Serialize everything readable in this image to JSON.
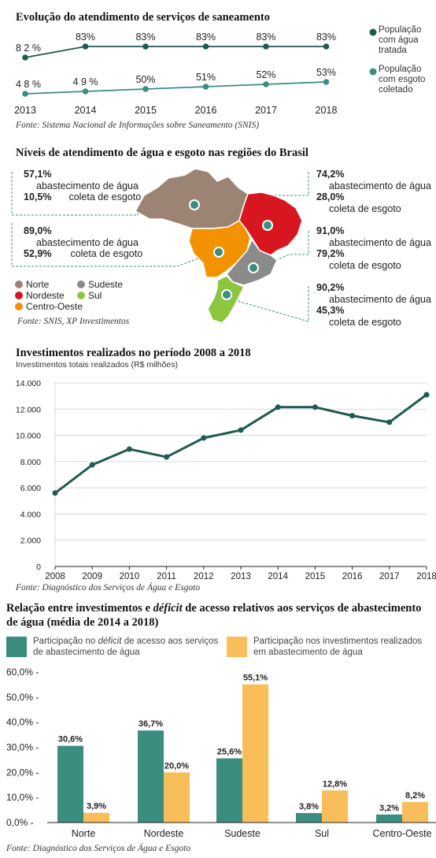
{
  "colors": {
    "dark_teal": "#1f5a4e",
    "teal": "#3b8d80",
    "orange": "#f7be5a",
    "norte": "#9c8474",
    "nordeste": "#d7161f",
    "sudeste": "#8a8a8a",
    "sul": "#8cc63f",
    "centro_oeste": "#f39200"
  },
  "section1": {
    "title": "Evolução do atendimento de serviços de saneamento",
    "source": "Fonte: Sistema Nacional de Informações sobre Saneamento (SNIS)",
    "legend": [
      {
        "label_line1": "População",
        "label_line2": "com água",
        "label_line3": "tratada"
      },
      {
        "label_line1": "População",
        "label_line2": "com esgoto",
        "label_line3": "coletado"
      }
    ]
  },
  "section2": {
    "title": "Níveis de atendimento de água e esgoto nas regiões do Brasil",
    "source": "Fonte: SNIS, XP Investimentos",
    "regions": [
      {
        "key": "norte",
        "water": "57,1%",
        "water_label": "abastecimento de água",
        "sewage": "10,5%",
        "sewage_label": "coleta de esgoto"
      },
      {
        "key": "centro_oeste",
        "water": "89,0%",
        "water_label": "abastecimento de água",
        "sewage": "52,9%",
        "sewage_label": "coleta de esgoto"
      },
      {
        "key": "nordeste",
        "water": "74,2%",
        "water_label": "abastecimento de água",
        "sewage": "28,0%",
        "sewage_label": "coleta de esgoto"
      },
      {
        "key": "sudeste",
        "water": "91,0%",
        "water_label": "abastecimento de água",
        "sewage": "79,2%",
        "sewage_label": "coleta de esgoto"
      },
      {
        "key": "sul",
        "water": "90,2%",
        "water_label": "abastecimento de água",
        "sewage": "45,3%",
        "sewage_label": "coleta de esgoto"
      }
    ],
    "legend": {
      "norte": "Norte",
      "sudeste": "Sudeste",
      "nordeste": "Nordeste",
      "sul": "Sul",
      "centro_oeste": "Centro-Oeste"
    }
  },
  "section3": {
    "title": "Investimentos realizados no período 2008 a 2018",
    "subtitle": "Investimentos totais realizados (R$ milhões)",
    "source": "Fonte: Diagnóstico dos Serviços de Água e Esgoto"
  },
  "section4": {
    "title_part1": "Relação entre investimentos e ",
    "title_italic": "déficit",
    "title_part2": " de acesso relativos aos serviços de abastecimento",
    "title_line2": "de água (média de 2014 a 2018)",
    "legend1_part1": "Participação no ",
    "legend1_italic": "déficit",
    "legend1_part2": " de acesso aos serviços",
    "legend1_line2": "de abastecimento de água",
    "legend2_line1": "Participação nos investimentos realizados",
    "legend2_line2": "em abastecimento de água",
    "source": "Fonte: Diagnóstico dos Serviços de Água e Esgoto"
  },
  "chart_data": [
    {
      "type": "line",
      "title": "Evolução do atendimento de serviços de saneamento",
      "x": [
        2013,
        2014,
        2015,
        2016,
        2017,
        2018
      ],
      "series": [
        {
          "name": "População com água tratada",
          "values": [
            82,
            83,
            83,
            83,
            83,
            83
          ],
          "labels": [
            "8 2 %",
            "83%",
            "83%",
            "83%",
            "83%",
            "83%"
          ]
        },
        {
          "name": "População com esgoto coletado",
          "values": [
            48,
            49,
            50,
            51,
            52,
            53
          ],
          "labels": [
            "4 8 %",
            "4 9 %",
            "50%",
            "51%",
            "52%",
            "53%"
          ]
        }
      ]
    },
    {
      "type": "line",
      "title": "Investimentos realizados no período 2008 a 2018",
      "ylabel": "Investimentos totais realizados (R$ milhões)",
      "x": [
        2008,
        2009,
        2010,
        2011,
        2012,
        2013,
        2014,
        2015,
        2016,
        2017,
        2018
      ],
      "values": [
        5600,
        7750,
        8950,
        8350,
        9800,
        10400,
        12150,
        12150,
        11500,
        11000,
        13100
      ],
      "ylim": [
        0,
        14000
      ],
      "yticks": [
        "0",
        "2.000",
        "4.000",
        "6.000",
        "8.000",
        "10.000",
        "12.000",
        "14.000"
      ],
      "grid": "horizontal"
    },
    {
      "type": "bar",
      "title": "Relação entre investimentos e déficit de acesso relativos aos serviços de abastecimento de água (média de 2014 a 2018)",
      "categories": [
        "Norte",
        "Nordeste",
        "Sudeste",
        "Sul",
        "Centro-Oeste"
      ],
      "series": [
        {
          "name": "Participação no déficit de acesso aos serviços de abastecimento de água",
          "values": [
            30.6,
            36.7,
            25.6,
            3.8,
            3.2
          ],
          "labels": [
            "30,6%",
            "36,7%",
            "25,6%",
            "3,8%",
            "3,2%"
          ]
        },
        {
          "name": "Participação nos investimentos realizados em abastecimento de água",
          "values": [
            3.9,
            20.0,
            55.1,
            12.8,
            8.2
          ],
          "labels": [
            "3,9%",
            "20,0%",
            "55,1%",
            "12,8%",
            "8,2%"
          ]
        }
      ],
      "ylim": [
        0,
        60
      ],
      "yticks": [
        "0,0%",
        "10,0%",
        "20,0%",
        "30,0%",
        "40,0%",
        "50,0%",
        "60,0%"
      ]
    }
  ]
}
